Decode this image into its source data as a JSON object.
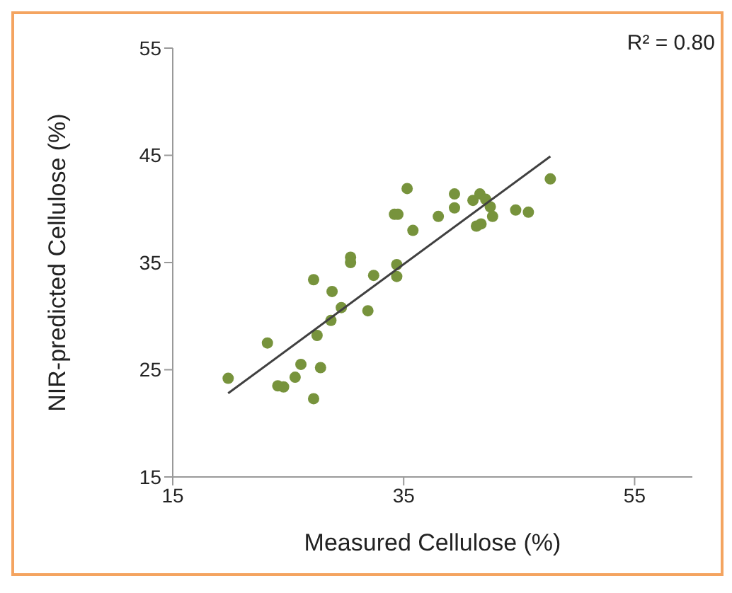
{
  "chart_data": {
    "type": "scatter",
    "xlabel": "Measured Cellulose (%)",
    "ylabel": "NIR-predicted Cellulose (%)",
    "annotations": [
      "R² = 0.80"
    ],
    "xlim": [
      15,
      60
    ],
    "xticks": [
      15,
      35,
      55
    ],
    "ylim": [
      15,
      55
    ],
    "yticks": [
      15,
      25,
      35,
      45,
      55
    ],
    "marker": "circle",
    "series": [
      {
        "color": "#77933c",
        "x": [
          19.8,
          23.2,
          24.1,
          24.6,
          25.6,
          26.1,
          27.2,
          27.8,
          27.5,
          28.7,
          29.6,
          27.2,
          28.8,
          30.4,
          30.4,
          31.9,
          32.4,
          34.4,
          34.4,
          34.2,
          34.5,
          35.3,
          35.8,
          38.0,
          39.4,
          39.4,
          41.0,
          41.6,
          42.1,
          42.5,
          42.7,
          41.3,
          41.7,
          44.7,
          45.8,
          47.7
        ],
        "values": [
          24.2,
          27.5,
          23.5,
          23.4,
          24.3,
          25.5,
          22.3,
          25.2,
          28.2,
          29.6,
          30.8,
          33.4,
          32.3,
          35.5,
          35.0,
          30.5,
          33.8,
          33.7,
          34.8,
          39.5,
          39.5,
          41.9,
          38.0,
          39.3,
          41.4,
          40.1,
          40.8,
          41.4,
          40.9,
          40.2,
          39.3,
          38.4,
          38.6,
          39.9,
          39.7,
          42.8
        ]
      },
      {
        "type": "line",
        "marker": "none",
        "color": "#404040",
        "x": [
          19.8,
          47.7
        ],
        "values": [
          22.8,
          44.9
        ]
      }
    ]
  }
}
